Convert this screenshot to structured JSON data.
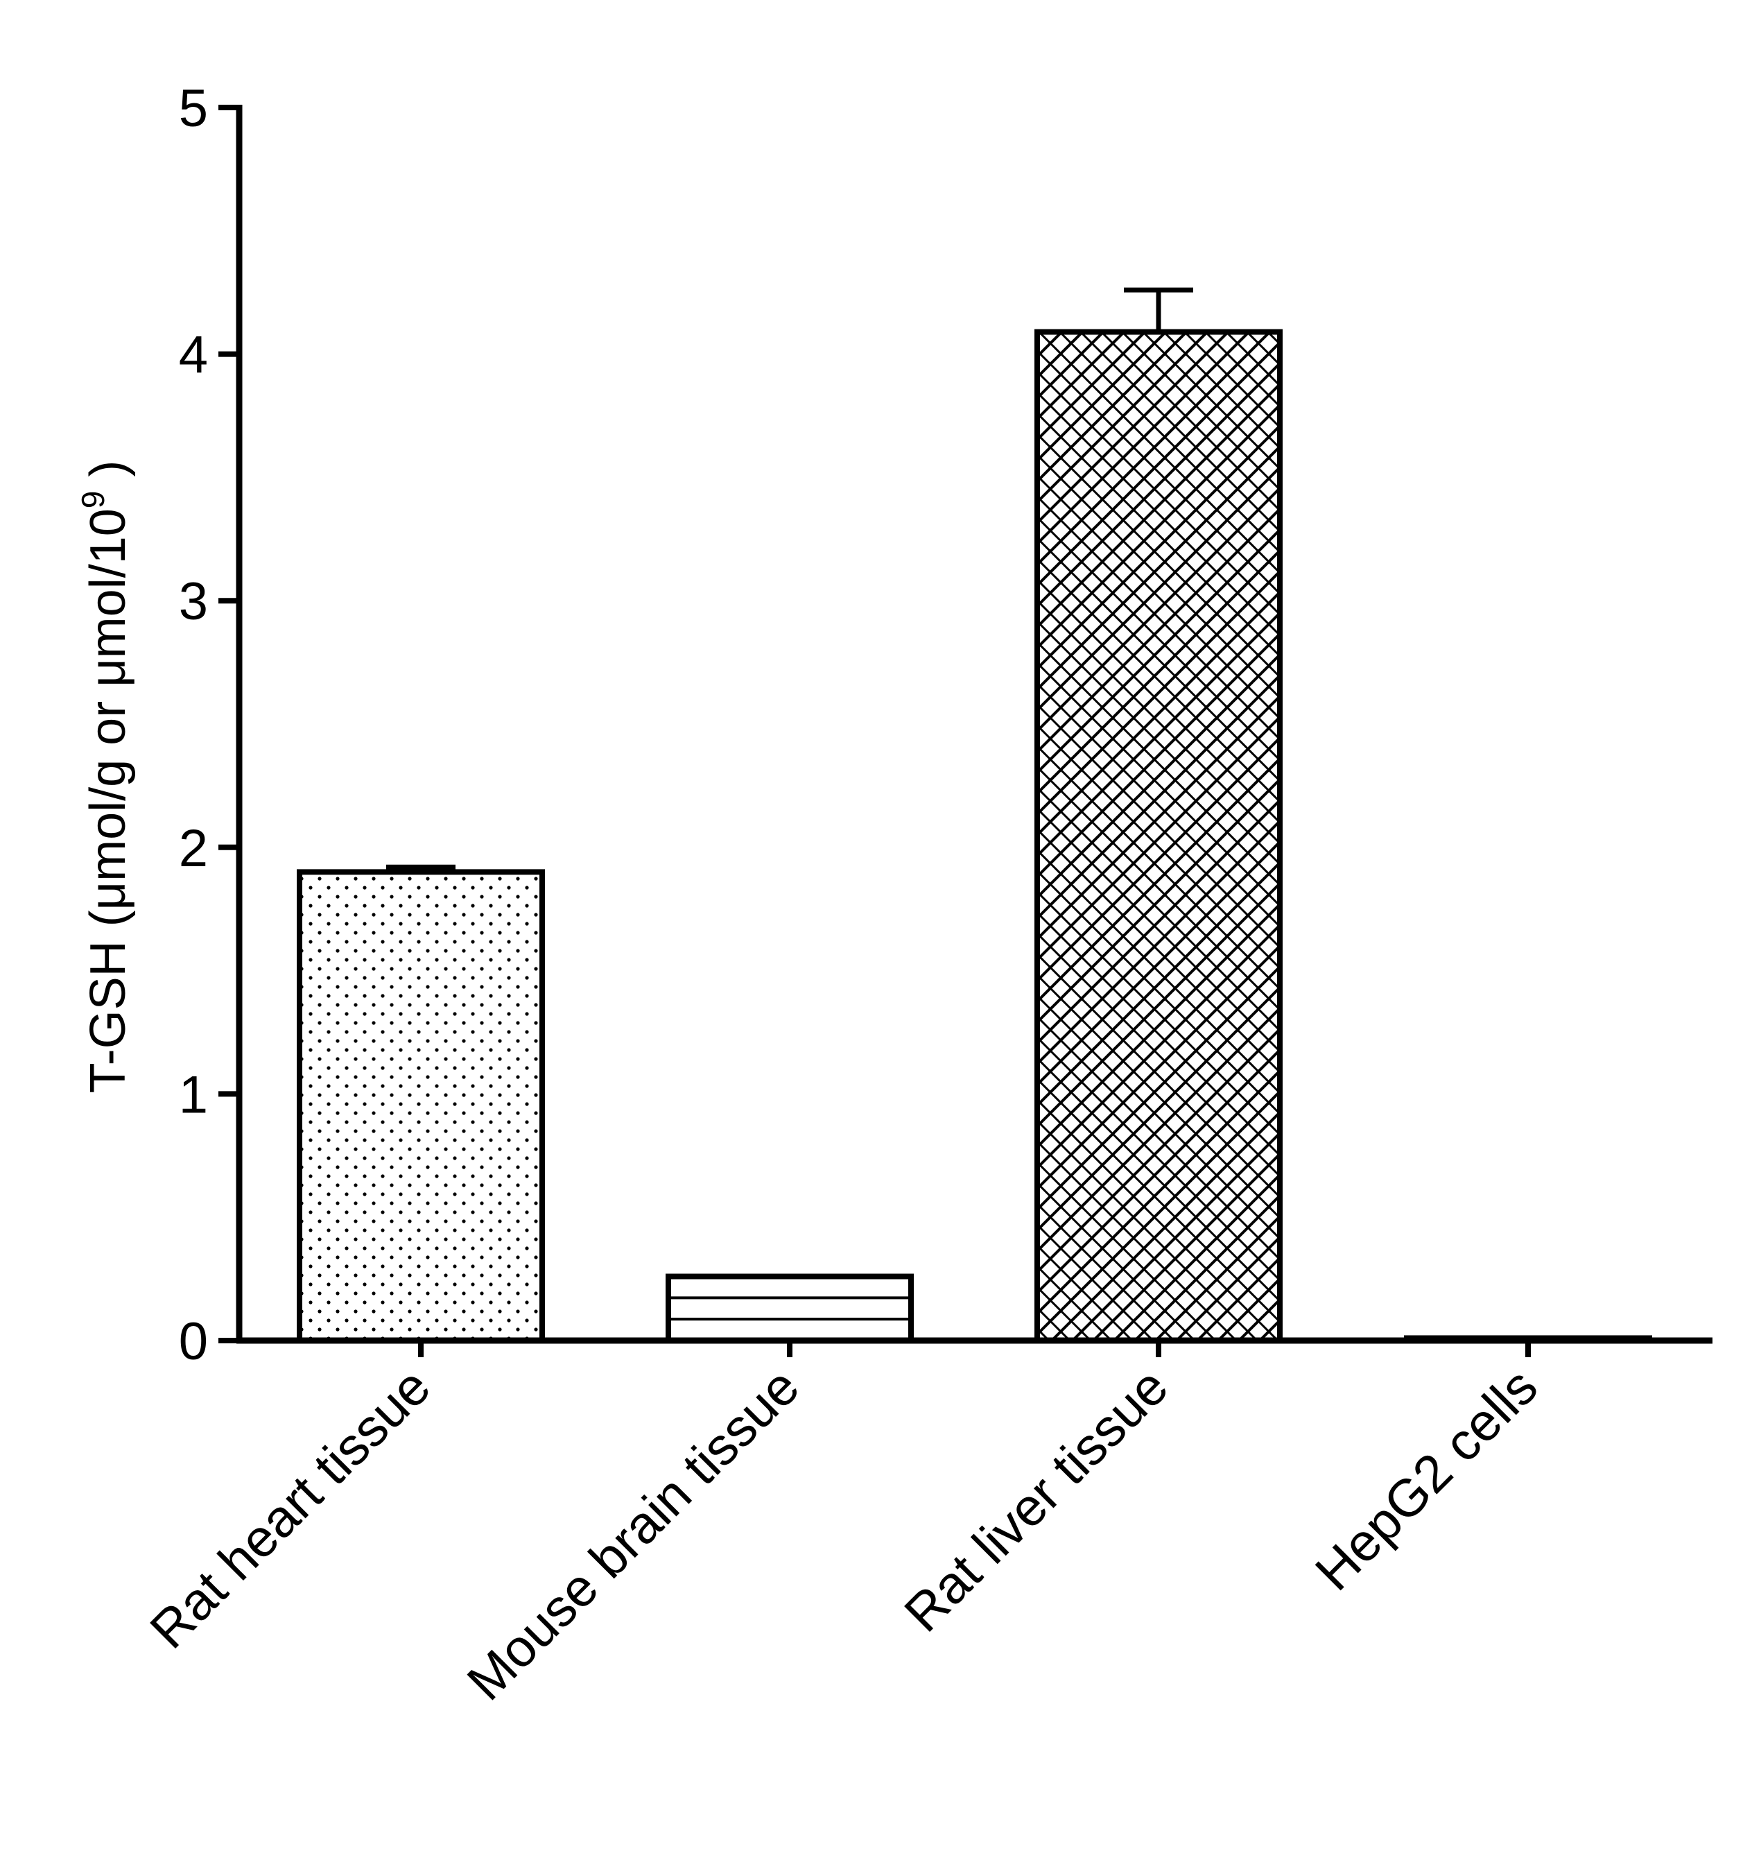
{
  "chart_data": {
    "type": "bar",
    "title": "",
    "xlabel": "",
    "ylabel": {
      "main": "T-GSH (μmol/g or μmol/10",
      "sup": "9",
      "end": " )"
    },
    "ylim": [
      0,
      5
    ],
    "yticks": [
      "0",
      "1",
      "2",
      "3",
      "4",
      "5"
    ],
    "categories": [
      "Rat heart tissue",
      "Mouse brain tissue",
      "Rat liver tissue",
      "HepG2 cells"
    ],
    "values": [
      1.9,
      0.26,
      4.09,
      0.01
    ],
    "errors": [
      0.02,
      0,
      0.17,
      0
    ],
    "patterns": [
      "dots",
      "horizontal-lines",
      "crosshatch",
      "none"
    ],
    "grid": false,
    "legend": "none"
  }
}
